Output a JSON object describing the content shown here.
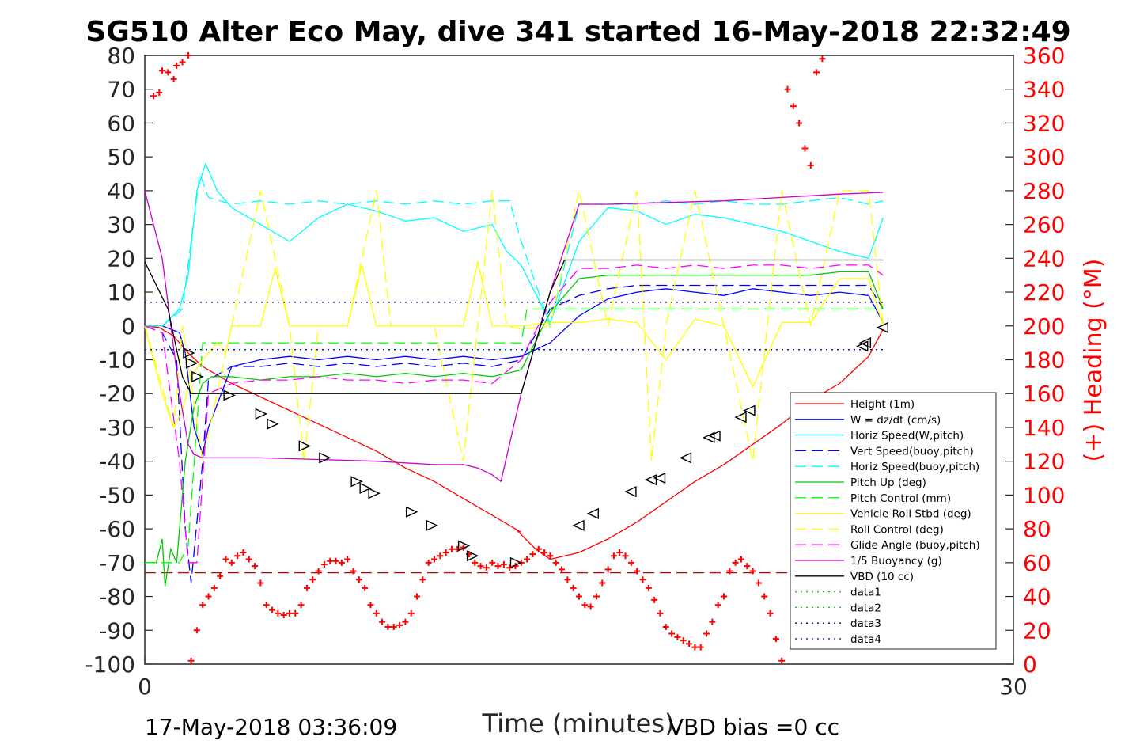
{
  "chart_data": {
    "type": "line",
    "title": "SG510 Alter Eco May, dive 341 started 16-May-2018 22:32:49",
    "xlabel": "Time (minutes)",
    "ylabel_right": "(+) Heading (°M)",
    "xlim": [
      0,
      30
    ],
    "ylim_left": [
      -100,
      80
    ],
    "ylim_right": [
      0,
      360
    ],
    "x_ticks": [
      "0",
      "30"
    ],
    "y_ticks_left": [
      "80",
      "70",
      "60",
      "50",
      "40",
      "30",
      "20",
      "10",
      "0",
      "-10",
      "-20",
      "-30",
      "-40",
      "-50",
      "-60",
      "-70",
      "-80",
      "-90",
      "-100"
    ],
    "y_ticks_right": [
      "360",
      "340",
      "320",
      "300",
      "280",
      "260",
      "240",
      "220",
      "200",
      "180",
      "160",
      "140",
      "120",
      "100",
      "80",
      "60",
      "40",
      "20",
      "0"
    ],
    "footer_left": "17-May-2018 03:36:09",
    "footer_right": "VBD bias =0 cc",
    "legend_position": "lower-right",
    "series": [
      {
        "name": "Height (1m)",
        "color": "#ff0000",
        "style": "solid",
        "x": [
          0,
          0.5,
          1,
          1.5,
          2,
          3,
          4,
          5,
          6,
          7,
          8,
          9,
          10,
          11,
          12,
          13,
          12.8,
          13.5,
          14,
          15,
          16,
          17,
          18,
          19,
          20,
          21,
          22,
          23,
          24,
          25,
          25.5
        ],
        "y": [
          0,
          -0.5,
          -3,
          -8,
          -12,
          -17,
          -21,
          -25,
          -29,
          -33,
          -37,
          -42,
          -46,
          -51,
          -56,
          -61,
          -60,
          -66,
          -69,
          -67,
          -63,
          -58,
          -52,
          -46,
          -41,
          -35,
          -29,
          -22,
          -17,
          -9,
          -1
        ]
      },
      {
        "name": "W = dz/dt (cm/s)",
        "color": "#0000ff",
        "style": "solid",
        "x": [
          0,
          0.6,
          1.2,
          1.4,
          1.7,
          2,
          2.2,
          3,
          4,
          5,
          6,
          7,
          8,
          9,
          10,
          11,
          12,
          13,
          14,
          15,
          16,
          17,
          18,
          19,
          20,
          21,
          22,
          23,
          24,
          25,
          25.5
        ],
        "y": [
          0,
          0,
          -2,
          -8,
          -30,
          -38,
          -30,
          -12,
          -10,
          -9,
          -10,
          -9,
          -10,
          -9,
          -10,
          -9,
          -10,
          -9,
          -5,
          3,
          8,
          10,
          11,
          10,
          9,
          11,
          10,
          9,
          10,
          9,
          1
        ]
      },
      {
        "name": "Horiz Speed(W,pitch)",
        "color": "#00ffff",
        "style": "solid",
        "x": [
          0,
          0.6,
          1.2,
          1.5,
          1.8,
          2.1,
          2.5,
          3,
          4,
          5,
          6,
          7,
          8,
          9,
          10,
          11,
          12,
          12.5,
          13,
          14,
          15,
          16,
          17,
          18,
          19,
          20,
          21,
          22,
          23,
          24,
          25,
          25.5
        ],
        "y": [
          0,
          0,
          5,
          15,
          40,
          48,
          40,
          35,
          30,
          25,
          32,
          36,
          34,
          31,
          32,
          28,
          30,
          22,
          18,
          1,
          25,
          35,
          34,
          30,
          33,
          32,
          30,
          28,
          25,
          22,
          20,
          32
        ]
      },
      {
        "name": "Vert Speed(buoy,pitch)",
        "color": "#0000ff",
        "style": "dashed",
        "x": [
          0,
          0.6,
          1.1,
          1.4,
          1.6,
          2,
          2.2,
          3,
          4,
          5,
          6,
          7,
          8,
          9,
          10,
          11,
          12,
          13,
          14,
          15,
          16,
          17,
          18,
          19,
          20,
          21,
          22,
          23,
          24,
          25,
          25.5
        ],
        "y": [
          0,
          -2,
          -10,
          -60,
          -76,
          -40,
          -16,
          -12,
          -12,
          -11,
          -12,
          -11,
          -12,
          -11,
          -12,
          -11,
          -12,
          -10,
          5,
          9,
          11,
          12,
          12,
          12,
          12,
          12,
          12,
          12,
          12,
          12,
          5
        ]
      },
      {
        "name": "Horiz Speed(buoy,pitch)",
        "color": "#00ffff",
        "style": "dashed",
        "x": [
          0,
          0.6,
          1.3,
          1.6,
          1.9,
          2.2,
          3,
          4,
          5,
          6,
          7,
          8,
          9,
          10,
          11,
          12,
          12.6,
          13,
          14,
          15,
          16,
          17,
          18,
          19,
          20,
          21,
          22,
          23,
          24,
          25,
          25.5
        ],
        "y": [
          0,
          0,
          5,
          25,
          45,
          38,
          36,
          37,
          36,
          37,
          36,
          37,
          36,
          37,
          36,
          37,
          37,
          25,
          0,
          36,
          36,
          36,
          37,
          36,
          37,
          36,
          36,
          37,
          38,
          36,
          37
        ]
      },
      {
        "name": "Pitch Up (deg)",
        "color": "#00cc00",
        "style": "solid",
        "x": [
          0,
          0.4,
          0.6,
          0.7,
          0.9,
          1.1,
          1.4,
          1.7,
          2,
          2.3,
          3,
          4,
          5,
          6,
          7,
          8,
          9,
          10,
          11,
          12,
          13,
          14,
          15,
          16,
          17,
          18,
          19,
          20,
          21,
          22,
          23,
          24,
          25,
          25.5
        ],
        "y": [
          -70,
          -70,
          -63,
          -77,
          -66,
          -70,
          -40,
          -24,
          -17,
          -15,
          -15,
          -16,
          -15,
          -15,
          -14,
          -15,
          -14,
          -15,
          -14,
          -15,
          -13,
          4,
          14,
          15,
          15,
          15,
          15,
          15,
          15,
          15,
          15,
          16,
          16,
          5
        ]
      },
      {
        "name": "Pitch Control (mm)",
        "color": "#00ff00",
        "style": "dashed",
        "x": [
          0,
          1.2,
          1.5,
          2,
          3,
          6,
          9,
          12,
          13,
          13.2,
          14,
          18,
          22,
          25.5
        ],
        "y": [
          -70,
          -70,
          -65,
          -5,
          -5,
          -5,
          -5,
          -5,
          -5,
          5,
          5,
          5,
          5,
          5
        ]
      },
      {
        "name": "Vehicle Roll Stbd (deg)",
        "color": "#ffff00",
        "style": "solid",
        "x": [
          0,
          0.6,
          1,
          1.3,
          1.6,
          2,
          2.5,
          2.8,
          3,
          4,
          4.5,
          5,
          6,
          7,
          7.5,
          8,
          9,
          10,
          11,
          11.5,
          12,
          13,
          14,
          15,
          16,
          17,
          18,
          19,
          19.5,
          20,
          21,
          22,
          23,
          24,
          25,
          25.5
        ],
        "y": [
          0,
          -20,
          -30,
          -25,
          -15,
          -10,
          -5,
          -8,
          0,
          0,
          17,
          0,
          0,
          0,
          18,
          0,
          0,
          0,
          0,
          19,
          0,
          0,
          1,
          1,
          2,
          1,
          -10,
          2,
          1,
          0,
          -18,
          1,
          1,
          14,
          14,
          0
        ]
      },
      {
        "name": "Roll Control (deg)",
        "color": "#ffff00",
        "style": "dashed",
        "x": [
          0,
          1,
          1.3,
          2,
          3,
          4,
          5,
          5.5,
          6,
          7,
          8,
          8.5,
          9,
          10,
          11,
          12,
          12.5,
          13,
          14,
          15,
          16,
          17,
          17.5,
          18,
          19,
          20,
          21,
          22,
          23,
          24,
          25,
          25.5
        ],
        "y": [
          0,
          -30,
          0,
          -40,
          0,
          40,
          0,
          -40,
          0,
          0,
          40,
          0,
          0,
          0,
          -40,
          40,
          0,
          -1,
          0,
          40,
          0,
          40,
          -40,
          0,
          40,
          0,
          -40,
          40,
          0,
          40,
          40,
          0
        ]
      },
      {
        "name": "Glide Angle (buoy,pitch)",
        "color": "#ff00ff",
        "style": "dashed",
        "x": [
          0,
          0.6,
          1.2,
          1.5,
          1.8,
          2.2,
          3,
          4,
          5,
          6,
          7,
          8,
          9,
          10,
          11,
          12,
          13,
          14,
          15,
          16,
          17,
          18,
          19,
          20,
          21,
          22,
          23,
          24,
          25,
          25.5
        ],
        "y": [
          0,
          -2,
          -40,
          -70,
          -70,
          -20,
          -17,
          -16,
          -16,
          -15,
          -16,
          -16,
          -17,
          -16,
          -16,
          -17,
          -10,
          7,
          17,
          17,
          18,
          17,
          18,
          17,
          18,
          18,
          17,
          18,
          18,
          15
        ]
      },
      {
        "name": "1/5 Buoyancy (g)",
        "color": "#cc00cc",
        "style": "solid",
        "x": [
          0,
          0.6,
          1.2,
          1.5,
          1.7,
          2,
          4,
          6,
          8,
          10,
          11,
          11.5,
          12,
          12.3,
          13,
          14,
          15,
          16,
          18,
          20,
          22,
          24,
          25.5
        ],
        "y": [
          40,
          20,
          -20,
          -35,
          -38,
          -39,
          -39,
          -39.5,
          -40,
          -41,
          -41,
          -42,
          -44,
          -46,
          -20,
          10,
          36,
          36,
          36.5,
          37,
          38,
          39,
          39.5
        ]
      },
      {
        "name": "VBD (10 cc)",
        "color": "#000000",
        "style": "solid",
        "x": [
          0,
          0.8,
          1.3,
          1.6,
          2,
          6,
          10,
          11,
          11.2,
          12,
          13,
          14,
          14.5,
          15,
          18,
          22,
          25.5
        ],
        "y": [
          19,
          5,
          -15,
          -20,
          -20,
          -20,
          -20,
          -20,
          -20,
          -20,
          -20,
          10,
          19.5,
          19.5,
          19.5,
          19.5,
          19.5
        ]
      },
      {
        "name": "data1",
        "color": "#00cc00",
        "style": "dotted",
        "x": [],
        "y": []
      },
      {
        "name": "data2",
        "color": "#00cc00",
        "style": "dotted",
        "x": [],
        "y": []
      },
      {
        "name": "data3",
        "color": "#000066",
        "style": "dotted",
        "x": [
          0,
          25.5
        ],
        "y": [
          7,
          7
        ]
      },
      {
        "name": "data4",
        "color": "#0000cc",
        "style": "dotted",
        "x": [
          0,
          25.5
        ],
        "y": [
          -7,
          -7
        ]
      }
    ],
    "reference_line": {
      "color": "#cc0000",
      "style": "dashed",
      "y": -73
    },
    "heading_points": {
      "color": "#ff0000",
      "marker": "+",
      "axis": "right",
      "x": [
        0.3,
        0.5,
        0.6,
        0.8,
        1.0,
        1.1,
        1.3,
        1.5,
        1.6,
        1.8,
        2.0,
        2.2,
        2.4,
        2.6,
        2.8,
        3.0,
        3.2,
        3.4,
        3.6,
        3.8,
        4.0,
        4.2,
        4.4,
        4.6,
        4.8,
        5.0,
        5.2,
        5.4,
        5.6,
        5.8,
        6.0,
        6.2,
        6.4,
        6.6,
        6.8,
        7.0,
        7.2,
        7.4,
        7.6,
        7.8,
        8.0,
        8.2,
        8.4,
        8.6,
        8.8,
        9.0,
        9.2,
        9.4,
        9.6,
        9.8,
        10.0,
        10.2,
        10.4,
        10.6,
        10.8,
        11.0,
        11.2,
        11.4,
        11.6,
        11.8,
        12.0,
        12.2,
        12.4,
        12.6,
        12.8,
        13.0,
        13.2,
        13.4,
        13.6,
        13.8,
        14.0,
        14.2,
        14.4,
        14.6,
        14.8,
        15.0,
        15.2,
        15.4,
        15.6,
        15.8,
        16.0,
        16.2,
        16.4,
        16.6,
        16.8,
        17.0,
        17.2,
        17.4,
        17.6,
        17.8,
        18.0,
        18.2,
        18.4,
        18.6,
        18.8,
        19.0,
        19.2,
        19.4,
        19.6,
        19.8,
        20.0,
        20.2,
        20.4,
        20.6,
        20.8,
        21.0,
        21.2,
        21.4,
        21.6,
        21.8,
        22.0,
        22.2,
        22.4,
        22.6,
        22.8,
        23.0,
        23.2,
        23.4
      ],
      "y": [
        336,
        338,
        351,
        350,
        346,
        354,
        356,
        360,
        2,
        20,
        35,
        40,
        45,
        52,
        62,
        60,
        64,
        66,
        62,
        58,
        48,
        35,
        32,
        30,
        29,
        30,
        30,
        35,
        45,
        50,
        55,
        59,
        61,
        61,
        60,
        62,
        55,
        50,
        45,
        35,
        30,
        25,
        22,
        22,
        23,
        25,
        30,
        40,
        50,
        60,
        62,
        64,
        66,
        68,
        68,
        69,
        65,
        60,
        58,
        57,
        60,
        58,
        59,
        57,
        58,
        60,
        62,
        65,
        68,
        66,
        64,
        60,
        56,
        50,
        45,
        40,
        35,
        34,
        40,
        48,
        56,
        64,
        66,
        64,
        60,
        55,
        50,
        45,
        38,
        30,
        22,
        18,
        16,
        14,
        12,
        10,
        10,
        18,
        25,
        35,
        40,
        55,
        60,
        62,
        58,
        55,
        48,
        40,
        30,
        15,
        2,
        340,
        330,
        320,
        305,
        295,
        350,
        358
      ]
    },
    "height_markers": {
      "color": "#000000",
      "marker": "triangle",
      "x": [
        1.5,
        1.6,
        1.8,
        2.9,
        4.0,
        4.4,
        5.5,
        6.2,
        7.3,
        7.6,
        7.9,
        9.2,
        9.9,
        11.0,
        11.3,
        12.8,
        15.0,
        15.5,
        16.8,
        17.5,
        17.8,
        18.7,
        19.5,
        19.7,
        20.6,
        20.9,
        24.8,
        24.9,
        25.5
      ],
      "y": [
        -8,
        -11,
        -15,
        -20.5,
        -26,
        -29,
        -35.5,
        -39,
        -46,
        -48,
        -49.5,
        -55,
        -59,
        -65,
        -68,
        -70,
        -59,
        -55.5,
        -49,
        -45.5,
        -45,
        -39,
        -33,
        -32.5,
        -27,
        -25,
        -6,
        -5,
        -0.5
      ]
    }
  }
}
